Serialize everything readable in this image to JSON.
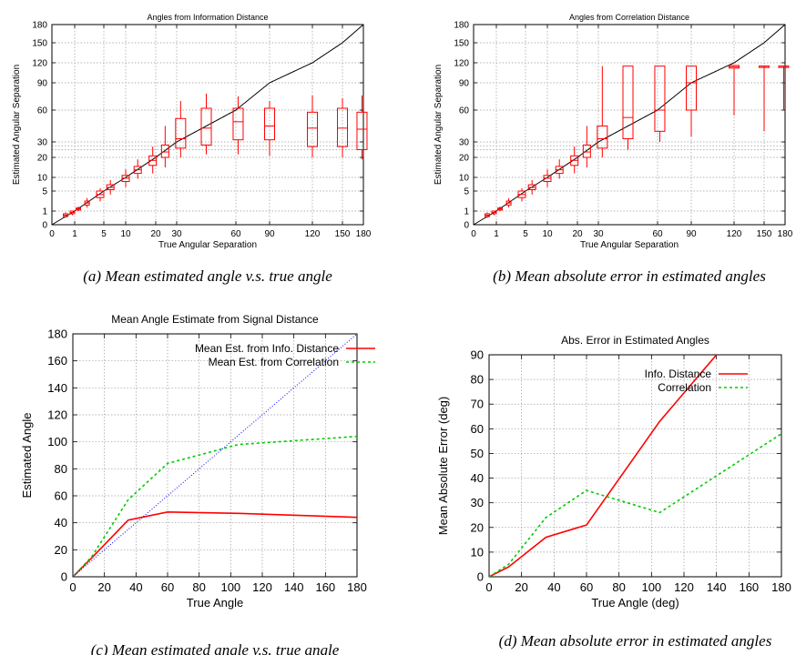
{
  "chart_data": [
    {
      "type": "box",
      "title": "Angles from Information Distance",
      "xlabel": "True Angular Separation",
      "ylabel": "Estimated Angular Separation",
      "caption": "(a) Mean estimated angle v.s. true angle",
      "xticks": [
        "0",
        "1",
        "5",
        "10",
        "20",
        "30",
        "60",
        "90",
        "120",
        "150",
        "180"
      ],
      "yticks": [
        "0",
        "1",
        "5",
        "10",
        "20",
        "30",
        "60",
        "90",
        "120",
        "150",
        "180"
      ],
      "yticks_extra": [
        25,
        27.5
      ],
      "reference_line": "y = x",
      "boxes": [
        {
          "x": 0.6,
          "q1": 0.6,
          "median": 0.7,
          "q3": 0.8,
          "min": 0.5,
          "max": 0.9
        },
        {
          "x": 0.9,
          "q1": 0.8,
          "median": 0.9,
          "q3": 1.0,
          "min": 0.7,
          "max": 1.1
        },
        {
          "x": 1.5,
          "q1": 1.2,
          "median": 1.4,
          "q3": 1.6,
          "min": 1.0,
          "max": 1.9
        },
        {
          "x": 2.7,
          "q1": 2.2,
          "median": 2.6,
          "q3": 3.0,
          "min": 1.7,
          "max": 3.6
        },
        {
          "x": 4.5,
          "q1": 3.7,
          "median": 4.3,
          "q3": 5.0,
          "min": 2.9,
          "max": 6.0
        },
        {
          "x": 6.5,
          "q1": 5.5,
          "median": 6.3,
          "q3": 7.3,
          "min": 4.3,
          "max": 9.0
        },
        {
          "x": 10,
          "q1": 8.5,
          "median": 9.7,
          "q3": 11,
          "min": 6.5,
          "max": 14
        },
        {
          "x": 14,
          "q1": 12,
          "median": 13.8,
          "q3": 15.5,
          "min": 9.5,
          "max": 19
        },
        {
          "x": 19,
          "q1": 16,
          "median": 18.5,
          "q3": 21,
          "min": 12,
          "max": 27
        },
        {
          "x": 24.5,
          "q1": 20,
          "median": 23.5,
          "q3": 28,
          "min": 15,
          "max": 45
        },
        {
          "x": 32,
          "q1": 26,
          "median": 33,
          "q3": 52,
          "min": 20,
          "max": 70
        },
        {
          "x": 45,
          "q1": 28,
          "median": 43,
          "q3": 62,
          "min": 22,
          "max": 78
        },
        {
          "x": 62,
          "q1": 32,
          "median": 49,
          "q3": 62,
          "min": 22,
          "max": 75
        },
        {
          "x": 90,
          "q1": 32,
          "median": 45,
          "q3": 62,
          "min": 21,
          "max": 70
        },
        {
          "x": 120,
          "q1": 27,
          "median": 43,
          "q3": 58,
          "min": 20,
          "max": 76
        },
        {
          "x": 150,
          "q1": 27,
          "median": 43,
          "q3": 62,
          "min": 20,
          "max": 73
        },
        {
          "x": 178,
          "q1": 25,
          "median": 42,
          "q3": 58,
          "min": 19,
          "max": 76
        }
      ]
    },
    {
      "type": "box",
      "title": "Angles from Correlation Distance",
      "xlabel": "True Angular Separation",
      "ylabel": "Estimated Angular Separation",
      "caption": "(b) Mean absolute error in estimated angles",
      "xticks": [
        "0",
        "1",
        "5",
        "10",
        "20",
        "30",
        "60",
        "90",
        "120",
        "150",
        "180"
      ],
      "yticks": [
        "0",
        "1",
        "5",
        "10",
        "20",
        "30",
        "60",
        "90",
        "120",
        "150",
        "180"
      ],
      "yticks_extra": [
        25,
        27.5
      ],
      "reference_line": "y = x",
      "boxes": [
        {
          "x": 0.6,
          "q1": 0.6,
          "median": 0.7,
          "q3": 0.8,
          "min": 0.5,
          "max": 0.9
        },
        {
          "x": 0.9,
          "q1": 0.8,
          "median": 0.9,
          "q3": 1.0,
          "min": 0.7,
          "max": 1.1
        },
        {
          "x": 1.5,
          "q1": 1.2,
          "median": 1.4,
          "q3": 1.6,
          "min": 1.0,
          "max": 1.9
        },
        {
          "x": 2.7,
          "q1": 2.2,
          "median": 2.6,
          "q3": 3.0,
          "min": 1.7,
          "max": 3.6
        },
        {
          "x": 4.5,
          "q1": 3.7,
          "median": 4.3,
          "q3": 5.0,
          "min": 2.9,
          "max": 6.0
        },
        {
          "x": 6.5,
          "q1": 5.5,
          "median": 6.3,
          "q3": 7.3,
          "min": 4.3,
          "max": 9.0
        },
        {
          "x": 10,
          "q1": 8.5,
          "median": 9.7,
          "q3": 11,
          "min": 6.5,
          "max": 14
        },
        {
          "x": 14,
          "q1": 12,
          "median": 13.8,
          "q3": 15.5,
          "min": 9.5,
          "max": 19
        },
        {
          "x": 19,
          "q1": 16,
          "median": 18.5,
          "q3": 21,
          "min": 12,
          "max": 27
        },
        {
          "x": 24.5,
          "q1": 20,
          "median": 23.5,
          "q3": 28,
          "min": 15,
          "max": 45
        },
        {
          "x": 32,
          "q1": 26,
          "median": 33,
          "q3": 45,
          "min": 20,
          "max": 115
        },
        {
          "x": 45,
          "q1": 33,
          "median": 53,
          "q3": 115,
          "min": 25,
          "max": 115
        },
        {
          "x": 62,
          "q1": 40,
          "median": 60,
          "q3": 115,
          "min": 30,
          "max": 115
        },
        {
          "x": 90,
          "q1": 60,
          "median": 90,
          "q3": 115,
          "min": 35,
          "max": 115
        },
        {
          "x": 120,
          "q1": 112,
          "median": 114,
          "q3": 116,
          "min": 55,
          "max": 116
        },
        {
          "x": 150,
          "q1": 115,
          "median": 115,
          "q3": 115,
          "min": 40,
          "max": 115
        },
        {
          "x": 178,
          "q1": 115,
          "median": 115,
          "q3": 115,
          "min": 60,
          "max": 115
        }
      ]
    },
    {
      "type": "line",
      "title": "Mean Angle Estimate from Signal Distance",
      "xlabel": "True Angle",
      "ylabel": "Estimated Angle",
      "caption": "(c) Mean estimated angle v.s. true angle",
      "xlim": [
        0,
        180
      ],
      "ylim": [
        0,
        180
      ],
      "xticks": [
        0,
        20,
        40,
        60,
        80,
        100,
        120,
        140,
        160,
        180
      ],
      "yticks": [
        0,
        20,
        40,
        60,
        80,
        100,
        120,
        140,
        160,
        180
      ],
      "grid": true,
      "legend": "top-left",
      "series": [
        {
          "name": "Mean Est. from Info. Distance",
          "color": "#ff0000",
          "dash": "none",
          "x": [
            0,
            12,
            35,
            60,
            105,
            180
          ],
          "y": [
            0,
            14,
            42,
            48,
            47,
            44
          ]
        },
        {
          "name": "Mean Est. from Correlation",
          "color": "#00cc00",
          "dash": "3,3",
          "x": [
            0,
            12,
            35,
            60,
            105,
            180
          ],
          "y": [
            0,
            15,
            57,
            84,
            98,
            104
          ]
        },
        {
          "name": "",
          "color": "#0000ff",
          "dash": "1,2",
          "x": [
            0,
            180
          ],
          "y": [
            0,
            180
          ]
        }
      ]
    },
    {
      "type": "line",
      "title": "Abs. Error in Estimated Angles",
      "xlabel": "True Angle (deg)",
      "ylabel": "Mean Absolute Error (deg)",
      "caption": "(d) Mean absolute error in estimated angles",
      "xlim": [
        0,
        180
      ],
      "ylim": [
        0,
        90
      ],
      "xticks": [
        0,
        20,
        40,
        60,
        80,
        100,
        120,
        140,
        160,
        180
      ],
      "yticks": [
        0,
        10,
        20,
        30,
        40,
        50,
        60,
        70,
        80,
        90
      ],
      "grid": true,
      "legend": "top-left",
      "series": [
        {
          "name": "Info. Distance",
          "color": "#ff0000",
          "dash": "none",
          "x": [
            0,
            12,
            35,
            60,
            105,
            140
          ],
          "y": [
            0,
            4,
            16,
            21,
            63,
            90
          ]
        },
        {
          "name": "Correlation",
          "color": "#00cc00",
          "dash": "3,3",
          "x": [
            0,
            12,
            35,
            60,
            105,
            180
          ],
          "y": [
            0,
            5,
            24,
            35,
            26,
            58
          ]
        }
      ]
    }
  ]
}
